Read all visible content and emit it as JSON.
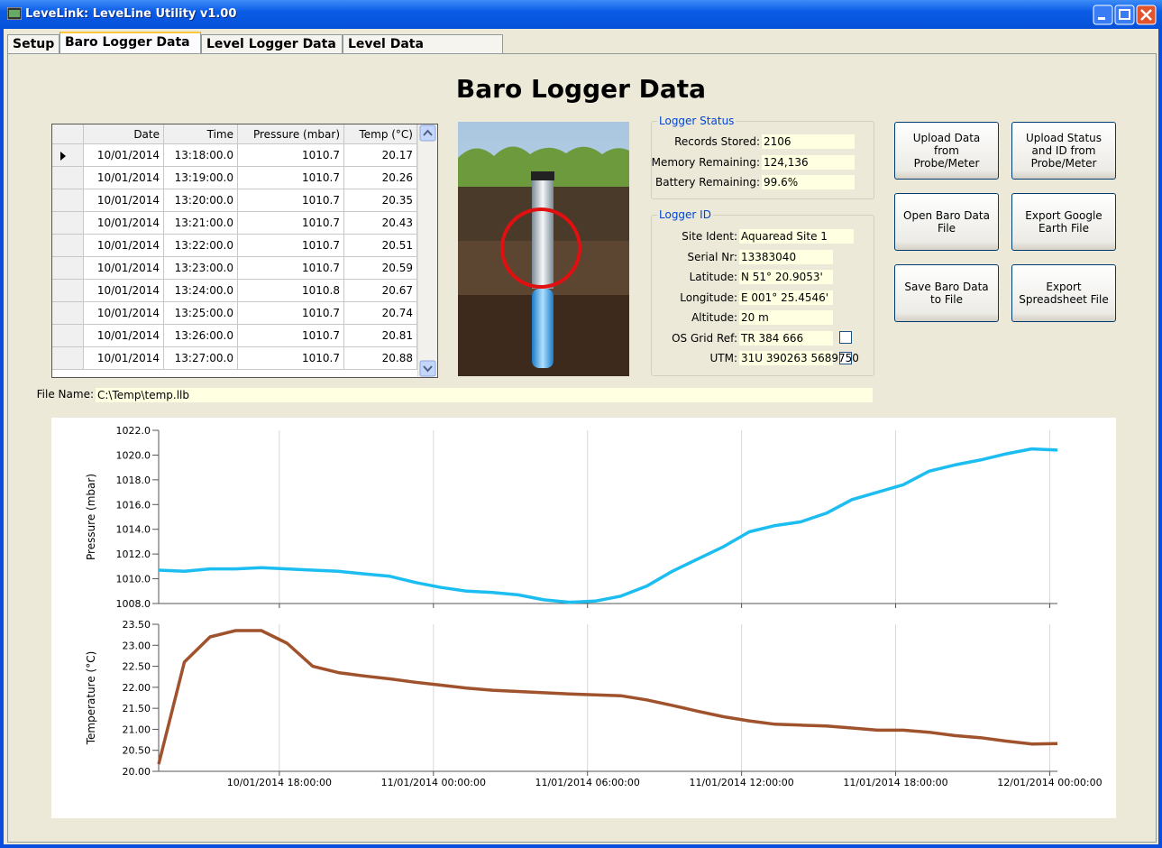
{
  "window": {
    "title": "LeveLink: LeveLine Utility v1.00"
  },
  "tabs": [
    "Setup",
    "Baro Logger Data",
    "Level Logger Data",
    "Level Data Correction"
  ],
  "heading": "Baro Logger Data",
  "table": {
    "columns": [
      "Date",
      "Time",
      "Pressure (mbar)",
      "Temp (°C)"
    ],
    "rows": [
      [
        "10/01/2014",
        "13:18:00.0",
        "1010.7",
        "20.17"
      ],
      [
        "10/01/2014",
        "13:19:00.0",
        "1010.7",
        "20.26"
      ],
      [
        "10/01/2014",
        "13:20:00.0",
        "1010.7",
        "20.35"
      ],
      [
        "10/01/2014",
        "13:21:00.0",
        "1010.7",
        "20.43"
      ],
      [
        "10/01/2014",
        "13:22:00.0",
        "1010.7",
        "20.51"
      ],
      [
        "10/01/2014",
        "13:23:00.0",
        "1010.7",
        "20.59"
      ],
      [
        "10/01/2014",
        "13:24:00.0",
        "1010.8",
        "20.67"
      ],
      [
        "10/01/2014",
        "13:25:00.0",
        "1010.7",
        "20.74"
      ],
      [
        "10/01/2014",
        "13:26:00.0",
        "1010.7",
        "20.81"
      ],
      [
        "10/01/2014",
        "13:27:00.0",
        "1010.7",
        "20.88"
      ]
    ]
  },
  "logger_status": {
    "title": "Logger Status",
    "fields": [
      {
        "label": "Records Stored:",
        "value": "2106"
      },
      {
        "label": "Memory Remaining:",
        "value": "124,136"
      },
      {
        "label": "Battery Remaining:",
        "value": "99.6%"
      }
    ]
  },
  "logger_id": {
    "title": "Logger ID",
    "fields": [
      {
        "label": "Site Ident:",
        "value": "Aquaread Site 1"
      },
      {
        "label": "Serial Nr:",
        "value": "13383040"
      },
      {
        "label": "Latitude:",
        "value": "N 51° 20.9053'"
      },
      {
        "label": "Longitude:",
        "value": "E 001° 25.4546'"
      },
      {
        "label": "Altitude:",
        "value": "20 m"
      },
      {
        "label": "OS Grid Ref:",
        "value": "TR 384 666"
      },
      {
        "label": "UTM:",
        "value": "31U 390263 5689750"
      }
    ]
  },
  "buttons": [
    "Upload Data from Probe/Meter",
    "Upload Status and ID from Probe/Meter",
    "Open Baro Data File",
    "Export Google Earth File",
    "Save Baro Data to File",
    "Export Spreadsheet File"
  ],
  "file_name": {
    "label": "File Name:",
    "value": "C:\\Temp\\temp.llb"
  },
  "chart_data": [
    {
      "type": "line",
      "y_label": "Pressure (mbar)",
      "color": "#1cbdf0",
      "x": [
        "10/01/2014 13:18:00",
        "10/01/2014 14:18:00",
        "10/01/2014 15:18:00",
        "10/01/2014 16:18:00",
        "10/01/2014 17:18:00",
        "10/01/2014 18:18:00",
        "10/01/2014 19:18:00",
        "10/01/2014 20:18:00",
        "10/01/2014 21:18:00",
        "10/01/2014 22:18:00",
        "10/01/2014 23:18:00",
        "11/01/2014 00:18:00",
        "11/01/2014 01:18:00",
        "11/01/2014 02:18:00",
        "11/01/2014 03:18:00",
        "11/01/2014 04:18:00",
        "11/01/2014 05:18:00",
        "11/01/2014 06:18:00",
        "11/01/2014 07:18:00",
        "11/01/2014 08:18:00",
        "11/01/2014 09:18:00",
        "11/01/2014 10:18:00",
        "11/01/2014 11:18:00",
        "11/01/2014 12:18:00",
        "11/01/2014 13:18:00",
        "11/01/2014 14:18:00",
        "11/01/2014 15:18:00",
        "11/01/2014 16:18:00",
        "11/01/2014 17:18:00",
        "11/01/2014 18:18:00",
        "11/01/2014 19:18:00",
        "11/01/2014 20:18:00",
        "11/01/2014 21:18:00",
        "11/01/2014 22:18:00",
        "11/01/2014 23:18:00",
        "12/01/2014 00:18:00"
      ],
      "values": [
        1010.7,
        1010.6,
        1010.8,
        1010.8,
        1010.9,
        1010.8,
        1010.7,
        1010.6,
        1010.4,
        1010.2,
        1009.7,
        1009.3,
        1009.0,
        1008.9,
        1008.7,
        1008.3,
        1008.1,
        1008.2,
        1008.6,
        1009.4,
        1010.6,
        1011.6,
        1012.6,
        1013.8,
        1014.3,
        1014.6,
        1015.3,
        1016.4,
        1017.0,
        1017.6,
        1018.7,
        1019.2,
        1019.6,
        1020.1,
        1020.5,
        1020.4
      ],
      "xlim": [
        "10/01/2014 13:18:00",
        "12/01/2014 00:18:00"
      ],
      "ylim": [
        1008,
        1022
      ],
      "yticks": [
        {
          "value": 1008,
          "label": "1008.0"
        },
        {
          "value": 1010,
          "label": "1010.0"
        },
        {
          "value": 1012,
          "label": "1012.0"
        },
        {
          "value": 1014,
          "label": "1014.0"
        },
        {
          "value": 1016,
          "label": "1016.0"
        },
        {
          "value": 1018,
          "label": "1018.0"
        },
        {
          "value": 1020,
          "label": "1020.0"
        },
        {
          "value": 1022,
          "label": "1022.0"
        }
      ],
      "grid": true
    },
    {
      "type": "line",
      "y_label": "Temperature (°C)",
      "color": "#a0522d",
      "x": [
        "10/01/2014 13:18:00",
        "10/01/2014 14:18:00",
        "10/01/2014 15:18:00",
        "10/01/2014 16:18:00",
        "10/01/2014 17:18:00",
        "10/01/2014 18:18:00",
        "10/01/2014 19:18:00",
        "10/01/2014 20:18:00",
        "10/01/2014 21:18:00",
        "10/01/2014 22:18:00",
        "10/01/2014 23:18:00",
        "11/01/2014 00:18:00",
        "11/01/2014 01:18:00",
        "11/01/2014 02:18:00",
        "11/01/2014 03:18:00",
        "11/01/2014 04:18:00",
        "11/01/2014 05:18:00",
        "11/01/2014 06:18:00",
        "11/01/2014 07:18:00",
        "11/01/2014 08:18:00",
        "11/01/2014 09:18:00",
        "11/01/2014 10:18:00",
        "11/01/2014 11:18:00",
        "11/01/2014 12:18:00",
        "11/01/2014 13:18:00",
        "11/01/2014 14:18:00",
        "11/01/2014 15:18:00",
        "11/01/2014 16:18:00",
        "11/01/2014 17:18:00",
        "11/01/2014 18:18:00",
        "11/01/2014 19:18:00",
        "11/01/2014 20:18:00",
        "11/01/2014 21:18:00",
        "11/01/2014 22:18:00",
        "11/01/2014 23:18:00",
        "12/01/2014 00:18:00"
      ],
      "values": [
        20.17,
        22.6,
        23.2,
        23.35,
        23.35,
        23.05,
        22.5,
        22.35,
        22.27,
        22.2,
        22.12,
        22.05,
        21.98,
        21.93,
        21.9,
        21.87,
        21.84,
        21.82,
        21.8,
        21.7,
        21.57,
        21.43,
        21.3,
        21.2,
        21.12,
        21.1,
        21.08,
        21.03,
        20.98,
        20.98,
        20.93,
        20.85,
        20.8,
        20.72,
        20.65,
        20.66
      ],
      "xlim": [
        "10/01/2014 13:18:00",
        "12/01/2014 00:18:00"
      ],
      "ylim": [
        20,
        23.5
      ],
      "yticks": [
        {
          "value": 20,
          "label": "20.00"
        },
        {
          "value": 20.5,
          "label": "20.50"
        },
        {
          "value": 21,
          "label": "21.00"
        },
        {
          "value": 21.5,
          "label": "21.50"
        },
        {
          "value": 22,
          "label": "22.00"
        },
        {
          "value": 22.5,
          "label": "22.50"
        },
        {
          "value": 23,
          "label": "23.00"
        },
        {
          "value": 23.5,
          "label": "23.50"
        }
      ],
      "xticks": [
        "10/01/2014 18:00:00",
        "11/01/2014 00:00:00",
        "11/01/2014 06:00:00",
        "11/01/2014 12:00:00",
        "11/01/2014 18:00:00",
        "12/01/2014 00:00:00"
      ],
      "grid": true
    }
  ]
}
